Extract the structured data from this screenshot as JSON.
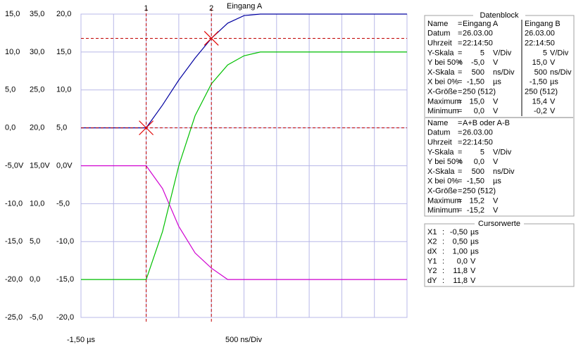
{
  "chart_data": {
    "type": "line",
    "title": "Eingang A",
    "x": [
      -1.5,
      -1.25,
      -1.0,
      -0.75,
      -0.5,
      -0.25,
      0,
      0.25,
      0.5,
      0.75,
      1.0,
      1.25,
      1.5,
      1.75,
      2.0,
      2.25,
      2.5,
      2.75,
      3.0,
      3.25,
      3.5
    ],
    "series": [
      {
        "name": "Eingang A",
        "color": "#0000a0",
        "axis": "y",
        "values": [
          0,
          0,
          0,
          0,
          0,
          3.0,
          6.3,
          9.2,
          11.8,
          13.8,
          14.8,
          15,
          15,
          15,
          15,
          15,
          15,
          15,
          15,
          15,
          15
        ]
      },
      {
        "name": "Eingang B",
        "color": "#d000d0",
        "axis": "y2",
        "values": [
          15,
          15,
          15,
          15,
          15,
          12,
          7,
          3.5,
          1.5,
          0,
          0,
          0,
          0,
          0,
          0,
          0,
          0,
          0,
          0,
          0,
          0
        ]
      },
      {
        "name": "A+B oder A-B",
        "color": "#00c000",
        "axis": "y3",
        "values": [
          -15,
          -15,
          -15,
          -15,
          -15,
          -8.7,
          0,
          6.6,
          10.8,
          13.3,
          14.5,
          15,
          15,
          15,
          15,
          15,
          15,
          15,
          15,
          15,
          15
        ]
      }
    ],
    "xlim": [
      -1.5,
      3.5
    ],
    "xticks": [
      -1.5,
      -1.0,
      -0.5,
      0,
      0.5,
      1.0,
      1.5,
      2.0,
      2.5,
      3.0,
      3.5
    ],
    "ylim": [
      -25,
      15
    ],
    "yticks": [
      {
        "value": 15,
        "label": "15,0"
      },
      {
        "value": 10,
        "label": "10,0"
      },
      {
        "value": 5,
        "label": "5,0"
      },
      {
        "value": 0,
        "label": "0,0"
      },
      {
        "value": -5,
        "label": "-5,0V"
      },
      {
        "value": -10,
        "label": "-10,0"
      },
      {
        "value": -15,
        "label": "-15,0"
      },
      {
        "value": -20,
        "label": "-20,0"
      },
      {
        "value": -25,
        "label": "-25,0"
      }
    ],
    "y2lim": [
      -5,
      35
    ],
    "y2ticks": [
      {
        "value": 35,
        "label": "35,0"
      },
      {
        "value": 30,
        "label": "30,0"
      },
      {
        "value": 25,
        "label": "25,0"
      },
      {
        "value": 20,
        "label": "20,0"
      },
      {
        "value": 15,
        "label": "15,0V"
      },
      {
        "value": 10,
        "label": "10,0"
      },
      {
        "value": 5,
        "label": "5,0"
      },
      {
        "value": 0,
        "label": "0,0"
      },
      {
        "value": -5,
        "label": "-5,0"
      }
    ],
    "y3lim": [
      -20,
      20
    ],
    "y3ticks": [
      {
        "value": 20,
        "label": "20,0"
      },
      {
        "value": 15,
        "label": "15,0"
      },
      {
        "value": 10,
        "label": "10,0"
      },
      {
        "value": 5,
        "label": "5,0"
      },
      {
        "value": 0,
        "label": "0,0V"
      },
      {
        "value": -5,
        "label": "-5,0"
      },
      {
        "value": -10,
        "label": "-10,0"
      },
      {
        "value": -15,
        "label": "-15,0"
      },
      {
        "value": -20,
        "label": "-20,0"
      }
    ],
    "grid": true,
    "x_start_label": "-1,50 µs",
    "x_scale_label": "500 ns/Div",
    "cursors": [
      {
        "label": "1",
        "x": -0.5
      },
      {
        "label": "2",
        "x": 0.5
      }
    ],
    "hcursors": [
      0,
      11.8
    ]
  },
  "datenblock": {
    "title": "Datenblock",
    "separator": "=",
    "name_label": "Name",
    "blocks": [
      {
        "rows": [
          {
            "label": "Datum",
            "a": "26.03.00",
            "b": "26.03.00"
          },
          {
            "label": "Uhrzeit",
            "a": "22:14:50",
            "b": "22:14:50"
          },
          {
            "label": "Y-Skala",
            "a": "5",
            "au": "V/Div",
            "b": "5",
            "bu": "V/Div"
          },
          {
            "label": "Y bei 50%",
            "a": "-5,0",
            "au": "V",
            "b": "15,0",
            "bu": "V"
          },
          {
            "label": "X-Skala",
            "a": "500",
            "au": "ns/Div",
            "b": "500",
            "bu": "ns/Div"
          },
          {
            "label": "X bei 0%",
            "a": "-1,50",
            "au": "µs",
            "b": "-1,50",
            "bu": "µs"
          },
          {
            "label": "X-Größe",
            "a": "250 (512)",
            "b": "250 (512)"
          },
          {
            "label": "Maximum",
            "a": "15,0",
            "au": "V",
            "b": "15,4",
            "bu": "V"
          },
          {
            "label": "Minimum",
            "a": "0,0",
            "au": "V",
            "b": "-0,2",
            "bu": "V"
          }
        ]
      },
      {
        "rows": [
          {
            "label": "Datum",
            "a": "26.03.00"
          },
          {
            "label": "Uhrzeit",
            "a": "22:14:50"
          },
          {
            "label": "Y-Skala",
            "a": "5",
            "au": "V/Div"
          },
          {
            "label": "Y bei 50%",
            "a": "0,0",
            "au": "V"
          },
          {
            "label": "X-Skala",
            "a": "500",
            "au": "ns/Div"
          },
          {
            "label": "X bei 0%",
            "a": "-1,50",
            "au": "µs"
          },
          {
            "label": "X-Größe",
            "a": "250 (512)"
          },
          {
            "label": "Maximum",
            "a": "15,2",
            "au": "V"
          },
          {
            "label": "Minimum",
            "a": "-15,2",
            "au": "V"
          }
        ]
      }
    ]
  },
  "cursorwerte": {
    "title": "Cursorwerte",
    "separator": ":",
    "rows": [
      {
        "label": "X1",
        "value": "-0,50",
        "unit": "µs"
      },
      {
        "label": "X2",
        "value": "0,50",
        "unit": "µs"
      },
      {
        "label": "dX",
        "value": "1,00",
        "unit": "µs"
      },
      {
        "label": "Y1",
        "value": "0,0",
        "unit": "V"
      },
      {
        "label": "Y2",
        "value": "11,8",
        "unit": "V"
      },
      {
        "label": "dY",
        "value": "11,8",
        "unit": "V"
      }
    ]
  }
}
